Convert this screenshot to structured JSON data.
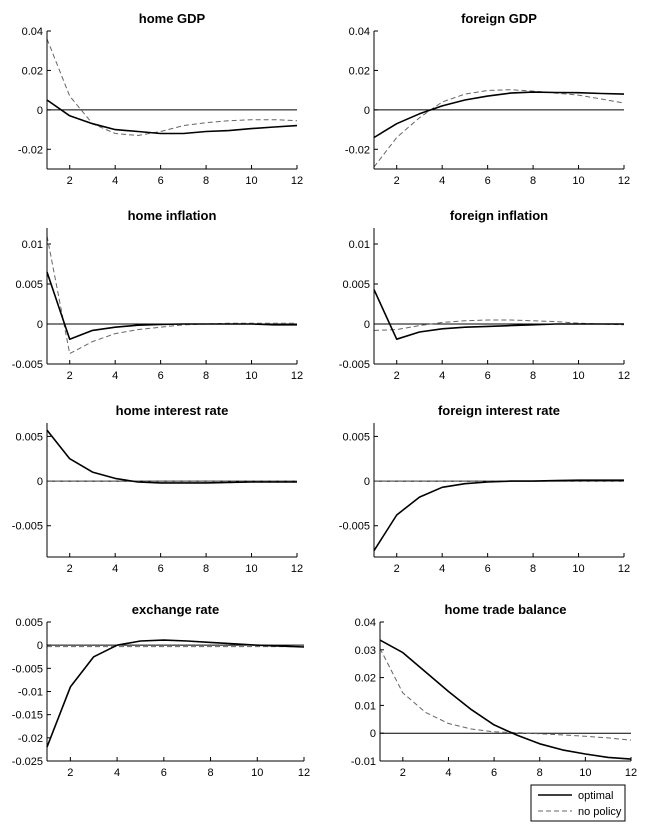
{
  "legend": {
    "items": [
      {
        "label": "optimal",
        "style": "solid",
        "color": "#000000"
      },
      {
        "label": "no policy",
        "style": "dashed",
        "color": "#666666"
      }
    ]
  },
  "chart_data": [
    {
      "type": "line",
      "title": "home GDP",
      "xlim": [
        1,
        12
      ],
      "ylim": [
        -0.03,
        0.04
      ],
      "xticks": [
        "2",
        "4",
        "6",
        "8",
        "10",
        "12"
      ],
      "yticks": [
        "0.04",
        "0.02",
        "0",
        "-0.02"
      ],
      "ytick_values": [
        0.04,
        0.02,
        0,
        -0.02
      ],
      "x": [
        1,
        2,
        3,
        4,
        5,
        6,
        7,
        8,
        9,
        10,
        11,
        12
      ],
      "series": [
        {
          "name": "optimal",
          "values": [
            0.005,
            -0.003,
            -0.007,
            -0.01,
            -0.011,
            -0.012,
            -0.012,
            -0.011,
            -0.0105,
            -0.0095,
            -0.0087,
            -0.008
          ]
        },
        {
          "name": "no policy",
          "values": [
            0.036,
            0.007,
            -0.007,
            -0.012,
            -0.013,
            -0.011,
            -0.008,
            -0.0065,
            -0.0055,
            -0.005,
            -0.005,
            -0.0055
          ]
        }
      ]
    },
    {
      "type": "line",
      "title": "foreign GDP",
      "xlim": [
        1,
        12
      ],
      "ylim": [
        -0.03,
        0.04
      ],
      "xticks": [
        "2",
        "4",
        "6",
        "8",
        "10",
        "12"
      ],
      "yticks": [
        "0.04",
        "0.02",
        "0",
        "-0.02"
      ],
      "ytick_values": [
        0.04,
        0.02,
        0,
        -0.02
      ],
      "x": [
        1,
        2,
        3,
        4,
        5,
        6,
        7,
        8,
        9,
        10,
        11,
        12
      ],
      "series": [
        {
          "name": "optimal",
          "values": [
            -0.014,
            -0.007,
            -0.002,
            0.002,
            0.005,
            0.007,
            0.0085,
            0.009,
            0.0088,
            0.0087,
            0.0083,
            0.008
          ]
        },
        {
          "name": "no policy",
          "values": [
            -0.029,
            -0.014,
            -0.004,
            0.004,
            0.008,
            0.0098,
            0.0102,
            0.0095,
            0.0085,
            0.0075,
            0.0055,
            0.0035
          ]
        }
      ]
    },
    {
      "type": "line",
      "title": "home inflation",
      "xlim": [
        1,
        12
      ],
      "ylim": [
        -0.005,
        0.012
      ],
      "xticks": [
        "2",
        "4",
        "6",
        "8",
        "10",
        "12"
      ],
      "yticks": [
        "0.01",
        "0.005",
        "0",
        "-0.005"
      ],
      "ytick_values": [
        0.01,
        0.005,
        0,
        -0.005
      ],
      "x": [
        1,
        2,
        3,
        4,
        5,
        6,
        7,
        8,
        9,
        10,
        11,
        12
      ],
      "series": [
        {
          "name": "optimal",
          "values": [
            0.0065,
            -0.0019,
            -0.0008,
            -0.0004,
            -0.00015,
            -5e-05,
            0,
            0,
            0,
            0,
            -0.0001,
            -0.0001
          ]
        },
        {
          "name": "no policy",
          "values": [
            0.011,
            -0.0037,
            -0.0022,
            -0.0012,
            -0.0007,
            -0.0004,
            -0.0001,
            0,
            0.0001,
            0.0001,
            0.0001,
            0.0001
          ]
        }
      ]
    },
    {
      "type": "line",
      "title": "foreign inflation",
      "xlim": [
        1,
        12
      ],
      "ylim": [
        -0.005,
        0.012
      ],
      "xticks": [
        "2",
        "4",
        "6",
        "8",
        "10",
        "12"
      ],
      "yticks": [
        "0.01",
        "0.005",
        "0",
        "-0.005"
      ],
      "ytick_values": [
        0.01,
        0.005,
        0,
        -0.005
      ],
      "x": [
        1,
        2,
        3,
        4,
        5,
        6,
        7,
        8,
        9,
        10,
        11,
        12
      ],
      "series": [
        {
          "name": "optimal",
          "values": [
            0.0043,
            -0.0019,
            -0.001,
            -0.0006,
            -0.0004,
            -0.0003,
            -0.0002,
            -0.0001,
            0,
            0,
            0,
            0
          ]
        },
        {
          "name": "no policy",
          "values": [
            -0.0008,
            -0.0007,
            -0.0002,
            0.0002,
            0.0004,
            0.0005,
            0.0005,
            0.0004,
            0.0003,
            0.0001,
            0,
            -0.0001
          ]
        }
      ]
    },
    {
      "type": "line",
      "title": "home interest rate",
      "xlim": [
        1,
        12
      ],
      "ylim": [
        -0.0085,
        0.0065
      ],
      "xticks": [
        "2",
        "4",
        "6",
        "8",
        "10",
        "12"
      ],
      "yticks": [
        "0.005",
        "0",
        "-0.005"
      ],
      "ytick_values": [
        0.005,
        0,
        -0.005
      ],
      "x": [
        1,
        2,
        3,
        4,
        5,
        6,
        7,
        8,
        9,
        10,
        11,
        12
      ],
      "series": [
        {
          "name": "optimal",
          "values": [
            0.0057,
            0.0025,
            0.001,
            0.0003,
            -0.0001,
            -0.0002,
            -0.0002,
            -0.0002,
            -0.00015,
            -0.0001,
            -0.0001,
            -0.0001
          ]
        },
        {
          "name": "no policy",
          "values": [
            0,
            0,
            0,
            0,
            0,
            0,
            0,
            0,
            0,
            0,
            0,
            0
          ]
        }
      ]
    },
    {
      "type": "line",
      "title": "foreign interest rate",
      "xlim": [
        1,
        12
      ],
      "ylim": [
        -0.0085,
        0.0065
      ],
      "xticks": [
        "2",
        "4",
        "6",
        "8",
        "10",
        "12"
      ],
      "yticks": [
        "0.005",
        "0",
        "-0.005"
      ],
      "ytick_values": [
        0.005,
        0,
        -0.005
      ],
      "x": [
        1,
        2,
        3,
        4,
        5,
        6,
        7,
        8,
        9,
        10,
        11,
        12
      ],
      "series": [
        {
          "name": "optimal",
          "values": [
            -0.0078,
            -0.0038,
            -0.0018,
            -0.0007,
            -0.0003,
            -0.0001,
            0,
            0,
            5e-05,
            0.0001,
            0.0001,
            0.0001
          ]
        },
        {
          "name": "no policy",
          "values": [
            0,
            0,
            0,
            0,
            0,
            0,
            0,
            0,
            0,
            0,
            0,
            0
          ]
        }
      ]
    },
    {
      "type": "line",
      "title": "exchange rate",
      "xlim": [
        1,
        12
      ],
      "ylim": [
        -0.025,
        0.005
      ],
      "xticks": [
        "2",
        "4",
        "6",
        "8",
        "10",
        "12"
      ],
      "yticks": [
        "0.005",
        "0",
        "-0.005",
        "-0.01",
        "-0.015",
        "-0.02",
        "-0.025"
      ],
      "ytick_values": [
        0.005,
        0,
        -0.005,
        -0.01,
        -0.015,
        -0.02,
        -0.025
      ],
      "x": [
        1,
        2,
        3,
        4,
        5,
        6,
        7,
        8,
        9,
        10,
        11,
        12
      ],
      "series": [
        {
          "name": "optimal",
          "values": [
            -0.022,
            -0.009,
            -0.0025,
            0,
            0.0009,
            0.0011,
            0.0009,
            0.0006,
            0.0003,
            0,
            -0.0002,
            -0.0004
          ]
        },
        {
          "name": "no policy",
          "values": [
            -0.0003,
            -0.0003,
            -0.0003,
            -0.0003,
            -0.0003,
            -0.0003,
            -0.0003,
            -0.0003,
            -0.0003,
            -0.0003,
            -0.0003,
            -0.0003
          ]
        }
      ]
    },
    {
      "type": "line",
      "title": "home trade balance",
      "xlim": [
        1,
        12
      ],
      "ylim": [
        -0.01,
        0.04
      ],
      "xticks": [
        "2",
        "4",
        "6",
        "8",
        "10",
        "12"
      ],
      "yticks": [
        "0.04",
        "0.03",
        "0.02",
        "0.01",
        "0",
        "-0.01"
      ],
      "ytick_values": [
        0.04,
        0.03,
        0.02,
        0.01,
        0,
        -0.01
      ],
      "x": [
        1,
        2,
        3,
        4,
        5,
        6,
        7,
        8,
        9,
        10,
        11,
        12
      ],
      "series": [
        {
          "name": "optimal",
          "values": [
            0.0335,
            0.029,
            0.022,
            0.015,
            0.0085,
            0.003,
            -0.0007,
            -0.0038,
            -0.006,
            -0.0075,
            -0.0087,
            -0.0093
          ]
        },
        {
          "name": "no policy",
          "values": [
            0.0305,
            0.0145,
            0.0075,
            0.0035,
            0.0015,
            0.0005,
            0.0002,
            -0.0002,
            -0.0006,
            -0.0011,
            -0.0017,
            -0.0025
          ]
        }
      ]
    }
  ]
}
